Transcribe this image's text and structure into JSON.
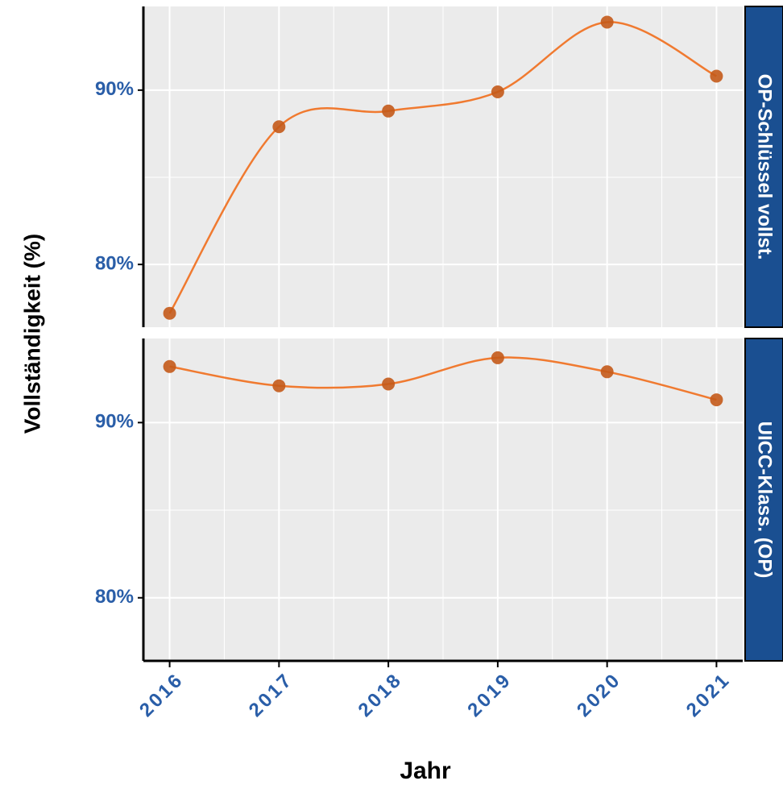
{
  "chart_data": {
    "type": "line",
    "xlabel": "Jahr",
    "ylabel": "Vollständigkeit (%)",
    "x": [
      2016,
      2017,
      2018,
      2019,
      2020,
      2021
    ],
    "xlim": [
      2015.76,
      2021.24
    ],
    "xticks": [
      2016,
      2017,
      2018,
      2019,
      2020,
      2021
    ],
    "ylim": [
      76.4,
      94.8
    ],
    "yticks": [
      {
        "value": 80,
        "label": "80%"
      },
      {
        "value": 90,
        "label": "90%"
      }
    ],
    "grid": true,
    "color": "#f07a30",
    "point_color": "#c45a1a",
    "strip_color": "#1a4f91",
    "series": [
      {
        "name": "OP-Schlüssel vollst.",
        "values": [
          77.2,
          87.9,
          88.8,
          89.9,
          93.9,
          90.8
        ]
      },
      {
        "name": "UICC-Klass. (OP)",
        "values": [
          93.2,
          92.1,
          92.2,
          93.7,
          92.9,
          91.3
        ]
      }
    ]
  }
}
